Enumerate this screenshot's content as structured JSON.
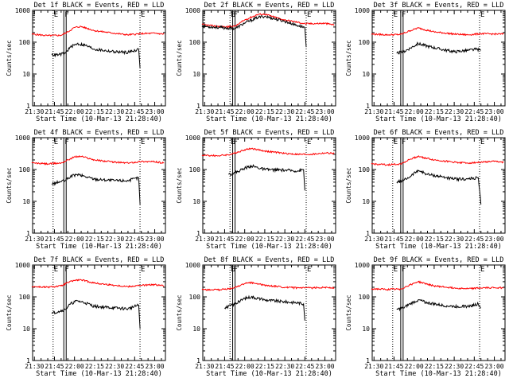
{
  "common": {
    "xlabel": "Start Time (10-Mar-13 21:28:40)",
    "ylabel": "Counts/sec",
    "x_tick_labels": [
      "21:30",
      "21:45",
      "22:00",
      "22:15",
      "22:30",
      "22:45",
      "23:00"
    ],
    "y_tick_labels": [
      "1",
      "10",
      "100",
      "1000"
    ],
    "marker_labels": [
      "E",
      "F",
      "E"
    ],
    "colors": {
      "events": "#000000",
      "lld": "#ff0000",
      "axes": "#000000",
      "background": "#ffffff"
    }
  },
  "chart_data": [
    {
      "type": "line",
      "title": "Det 1f BLACK = Events, RED = LLD",
      "x_tick_labels": [
        "21:30",
        "21:45",
        "22:00",
        "22:15",
        "22:30",
        "22:45",
        "23:00"
      ],
      "y_tick_labels": [
        "1",
        "10",
        "100",
        "1000"
      ],
      "ylim": [
        1,
        1000
      ],
      "yscale": "log",
      "xlim": [
        "21:28:40",
        "23:08:00"
      ],
      "xlabel": "Start Time (10-Mar-13 21:28:40)",
      "ylabel": "Counts/sec",
      "markers": [
        {
          "label": "E",
          "time": "21:44"
        },
        {
          "label": "F",
          "time": "21:52"
        },
        {
          "label": "E",
          "time": "22:49"
        }
      ],
      "series": [
        {
          "key": "lld",
          "color": "#ff0000",
          "x": [
            "21:28",
            "21:40",
            "21:50",
            "21:55",
            "22:00",
            "22:05",
            "22:15",
            "22:30",
            "22:40",
            "22:50",
            "23:00",
            "23:07"
          ],
          "values": [
            180,
            160,
            165,
            210,
            290,
            310,
            230,
            190,
            170,
            185,
            190,
            180
          ]
        },
        {
          "key": "events",
          "color": "#000000",
          "x": [
            "21:43",
            "21:48",
            "21:53",
            "21:57",
            "22:02",
            "22:08",
            "22:15",
            "22:30",
            "22:40",
            "22:48",
            "22:49"
          ],
          "values": [
            40,
            40,
            45,
            70,
            90,
            80,
            60,
            50,
            48,
            60,
            15
          ]
        }
      ]
    },
    {
      "type": "line",
      "title": "Det 2f BLACK = Events, RED = LLD",
      "x_tick_labels": [
        "21:30",
        "21:45",
        "22:00",
        "22:15",
        "22:30",
        "22:45",
        "23:00"
      ],
      "y_tick_labels": [
        "1",
        "10",
        "100",
        "1000"
      ],
      "ylim": [
        1,
        1000
      ],
      "yscale": "log",
      "xlim": [
        "21:28:40",
        "23:08:00"
      ],
      "xlabel": "Start Time (10-Mar-13 21:28:40)",
      "ylabel": "Counts/sec",
      "markers": [
        {
          "label": "E",
          "time": "21:49"
        },
        {
          "label": "F",
          "time": "21:51"
        },
        {
          "label": "E",
          "time": "22:46"
        }
      ],
      "series": [
        {
          "key": "lld",
          "color": "#ff0000",
          "x": [
            "21:28",
            "21:35",
            "21:45",
            "21:53",
            "22:00",
            "22:10",
            "22:15",
            "22:28",
            "22:40",
            "22:45",
            "23:00",
            "23:07"
          ],
          "values": [
            360,
            330,
            300,
            320,
            500,
            750,
            760,
            520,
            420,
            380,
            390,
            350
          ]
        },
        {
          "key": "events",
          "color": "#000000",
          "x": [
            "21:28",
            "21:45",
            "21:53",
            "22:00",
            "22:10",
            "22:15",
            "22:30",
            "22:40",
            "22:45",
            "22:46"
          ],
          "values": [
            320,
            280,
            270,
            400,
            600,
            650,
            450,
            330,
            290,
            70
          ]
        }
      ]
    },
    {
      "type": "line",
      "title": "Det 3f BLACK = Events, RED = LLD",
      "x_tick_labels": [
        "21:30",
        "21:45",
        "22:00",
        "22:15",
        "22:30",
        "22:45",
        "23:00"
      ],
      "y_tick_labels": [
        "1",
        "10",
        "100",
        "1000"
      ],
      "ylim": [
        1,
        1000
      ],
      "yscale": "log",
      "xlim": [
        "21:28:40",
        "23:08:00"
      ],
      "xlabel": "Start Time (10-Mar-13 21:28:40)",
      "ylabel": "Counts/sec",
      "markers": [
        {
          "label": "E",
          "time": "21:44"
        },
        {
          "label": "F",
          "time": "21:50"
        },
        {
          "label": "E",
          "time": "22:49"
        }
      ],
      "series": [
        {
          "key": "lld",
          "color": "#ff0000",
          "x": [
            "21:28",
            "21:40",
            "21:50",
            "21:57",
            "22:03",
            "22:15",
            "22:30",
            "22:40",
            "22:50",
            "23:00",
            "23:07"
          ],
          "values": [
            180,
            170,
            175,
            230,
            280,
            210,
            180,
            170,
            185,
            180,
            180
          ]
        },
        {
          "key": "events",
          "color": "#000000",
          "x": [
            "21:47",
            "21:52",
            "21:57",
            "22:03",
            "22:10",
            "22:20",
            "22:30",
            "22:40",
            "22:47",
            "22:50"
          ],
          "values": [
            45,
            50,
            65,
            90,
            75,
            60,
            50,
            55,
            60,
            55
          ]
        }
      ]
    },
    {
      "type": "line",
      "title": "Det 4f BLACK = Events, RED = LLD",
      "x_tick_labels": [
        "21:30",
        "21:45",
        "22:00",
        "22:15",
        "22:30",
        "22:45",
        "23:00"
      ],
      "y_tick_labels": [
        "1",
        "10",
        "100",
        "1000"
      ],
      "ylim": [
        1,
        1000
      ],
      "yscale": "log",
      "xlim": [
        "21:28:40",
        "23:08:00"
      ],
      "xlabel": "Start Time (10-Mar-13 21:28:40)",
      "ylabel": "Counts/sec",
      "markers": [
        {
          "label": "E",
          "time": "21:44"
        },
        {
          "label": "F",
          "time": "21:52"
        },
        {
          "label": "E",
          "time": "22:49"
        }
      ],
      "series": [
        {
          "key": "lld",
          "color": "#ff0000",
          "x": [
            "21:28",
            "21:40",
            "21:50",
            "21:55",
            "22:00",
            "22:05",
            "22:15",
            "22:30",
            "22:40",
            "22:50",
            "23:00",
            "23:07"
          ],
          "values": [
            160,
            150,
            160,
            200,
            250,
            260,
            200,
            170,
            160,
            180,
            175,
            160
          ]
        },
        {
          "key": "events",
          "color": "#000000",
          "x": [
            "21:43",
            "21:48",
            "21:53",
            "21:57",
            "22:02",
            "22:08",
            "22:15",
            "22:30",
            "22:40",
            "22:48",
            "22:49"
          ],
          "values": [
            35,
            40,
            45,
            60,
            70,
            60,
            50,
            45,
            45,
            55,
            8
          ]
        }
      ]
    },
    {
      "type": "line",
      "title": "Det 5f BLACK = Events, RED = LLD",
      "x_tick_labels": [
        "21:30",
        "21:45",
        "22:00",
        "22:15",
        "22:30",
        "22:45",
        "23:00"
      ],
      "y_tick_labels": [
        "1",
        "10",
        "100",
        "1000"
      ],
      "ylim": [
        1,
        1000
      ],
      "yscale": "log",
      "xlim": [
        "21:28:40",
        "23:08:00"
      ],
      "xlabel": "Start Time (10-Mar-13 21:28:40)",
      "ylabel": "Counts/sec",
      "markers": [
        {
          "label": "E",
          "time": "21:49"
        },
        {
          "label": "F",
          "time": "21:51"
        },
        {
          "label": "E",
          "time": "22:46"
        }
      ],
      "series": [
        {
          "key": "lld",
          "color": "#ff0000",
          "x": [
            "21:28",
            "21:40",
            "21:50",
            "22:00",
            "22:05",
            "22:15",
            "22:30",
            "22:40",
            "22:50",
            "23:00",
            "23:07"
          ],
          "values": [
            280,
            270,
            300,
            420,
            460,
            380,
            320,
            300,
            300,
            330,
            320
          ]
        },
        {
          "key": "events",
          "color": "#000000",
          "x": [
            "21:48",
            "21:53",
            "22:00",
            "22:05",
            "22:15",
            "22:30",
            "22:40",
            "22:44",
            "22:45"
          ],
          "values": [
            70,
            80,
            110,
            130,
            100,
            95,
            90,
            100,
            22
          ]
        }
      ]
    },
    {
      "type": "line",
      "title": "Det 6f BLACK = Events, RED = LLD",
      "x_tick_labels": [
        "21:30",
        "21:45",
        "22:00",
        "22:15",
        "22:30",
        "22:45",
        "23:00"
      ],
      "y_tick_labels": [
        "1",
        "10",
        "100",
        "1000"
      ],
      "ylim": [
        1,
        1000
      ],
      "yscale": "log",
      "xlim": [
        "21:28:40",
        "23:08:00"
      ],
      "xlabel": "Start Time (10-Mar-13 21:28:40)",
      "ylabel": "Counts/sec",
      "markers": [
        {
          "label": "E",
          "time": "21:44"
        },
        {
          "label": "F",
          "time": "21:50"
        },
        {
          "label": "E",
          "time": "22:49"
        }
      ],
      "series": [
        {
          "key": "lld",
          "color": "#ff0000",
          "x": [
            "21:28",
            "21:40",
            "21:50",
            "21:57",
            "22:03",
            "22:15",
            "22:30",
            "22:40",
            "22:50",
            "23:00",
            "23:07"
          ],
          "values": [
            150,
            140,
            150,
            210,
            260,
            200,
            170,
            160,
            170,
            180,
            170
          ]
        },
        {
          "key": "events",
          "color": "#000000",
          "x": [
            "21:47",
            "21:52",
            "21:57",
            "22:03",
            "22:10",
            "22:20",
            "22:30",
            "22:40",
            "22:48",
            "22:50"
          ],
          "values": [
            40,
            45,
            60,
            95,
            70,
            60,
            50,
            50,
            55,
            8
          ]
        }
      ]
    },
    {
      "type": "line",
      "title": "Det 7f BLACK = Events, RED = LLD",
      "x_tick_labels": [
        "21:30",
        "21:45",
        "22:00",
        "22:15",
        "22:30",
        "22:45",
        "23:00"
      ],
      "y_tick_labels": [
        "1",
        "10",
        "100",
        "1000"
      ],
      "ylim": [
        1,
        1000
      ],
      "yscale": "log",
      "xlim": [
        "21:28:40",
        "23:08:00"
      ],
      "xlabel": "Start Time (10-Mar-13 21:28:40)",
      "ylabel": "Counts/sec",
      "markers": [
        {
          "label": "E",
          "time": "21:44"
        },
        {
          "label": "F",
          "time": "21:52"
        },
        {
          "label": "E",
          "time": "22:49"
        }
      ],
      "series": [
        {
          "key": "lld",
          "color": "#ff0000",
          "x": [
            "21:28",
            "21:40",
            "21:50",
            "21:55",
            "22:00",
            "22:05",
            "22:15",
            "22:30",
            "22:40",
            "22:50",
            "23:00",
            "23:07"
          ],
          "values": [
            210,
            200,
            220,
            280,
            330,
            340,
            270,
            230,
            210,
            230,
            240,
            220
          ]
        },
        {
          "key": "events",
          "color": "#000000",
          "x": [
            "21:43",
            "21:48",
            "21:53",
            "21:57",
            "22:02",
            "22:08",
            "22:15",
            "22:30",
            "22:40",
            "22:48",
            "22:49"
          ],
          "values": [
            30,
            35,
            40,
            60,
            75,
            65,
            50,
            45,
            42,
            55,
            10
          ]
        }
      ]
    },
    {
      "type": "line",
      "title": "Det 8f BLACK = Events, RED = LLD",
      "x_tick_labels": [
        "21:30",
        "21:45",
        "22:00",
        "22:15",
        "22:30",
        "22:45",
        "23:00"
      ],
      "y_tick_labels": [
        "1",
        "10",
        "100",
        "1000"
      ],
      "ylim": [
        1,
        1000
      ],
      "yscale": "log",
      "xlim": [
        "21:28:40",
        "23:08:00"
      ],
      "xlabel": "Start Time (10-Mar-13 21:28:40)",
      "ylabel": "Counts/sec",
      "markers": [
        {
          "label": "E",
          "time": "21:49"
        },
        {
          "label": "F",
          "time": "21:51"
        },
        {
          "label": "E",
          "time": "22:46"
        }
      ],
      "series": [
        {
          "key": "lld",
          "color": "#ff0000",
          "x": [
            "21:28",
            "21:40",
            "21:50",
            "22:00",
            "22:05",
            "22:15",
            "22:30",
            "22:40",
            "22:50",
            "23:00",
            "23:07"
          ],
          "values": [
            170,
            165,
            180,
            260,
            280,
            230,
            200,
            190,
            190,
            200,
            190
          ]
        },
        {
          "key": "events",
          "color": "#000000",
          "x": [
            "21:45",
            "21:53",
            "22:00",
            "22:05",
            "22:15",
            "22:30",
            "22:40",
            "22:44",
            "22:45"
          ],
          "values": [
            45,
            60,
            90,
            100,
            80,
            70,
            65,
            60,
            18
          ]
        }
      ]
    },
    {
      "type": "line",
      "title": "Det 9f BLACK = Events, RED = LLD",
      "x_tick_labels": [
        "21:30",
        "21:45",
        "22:00",
        "22:15",
        "22:30",
        "22:45",
        "23:00"
      ],
      "y_tick_labels": [
        "1",
        "10",
        "100",
        "1000"
      ],
      "ylim": [
        1,
        1000
      ],
      "yscale": "log",
      "xlim": [
        "21:28:40",
        "23:08:00"
      ],
      "xlabel": "Start Time (10-Mar-13 21:28:40)",
      "ylabel": "Counts/sec",
      "markers": [
        {
          "label": "E",
          "time": "21:44"
        },
        {
          "label": "F",
          "time": "21:50"
        },
        {
          "label": "E",
          "time": "22:49"
        }
      ],
      "series": [
        {
          "key": "lld",
          "color": "#ff0000",
          "x": [
            "21:28",
            "21:40",
            "21:50",
            "21:57",
            "22:03",
            "22:15",
            "22:30",
            "22:40",
            "22:50",
            "23:00",
            "23:07"
          ],
          "values": [
            180,
            170,
            175,
            240,
            300,
            220,
            190,
            180,
            190,
            195,
            190
          ]
        },
        {
          "key": "events",
          "color": "#000000",
          "x": [
            "21:47",
            "21:52",
            "21:57",
            "22:03",
            "22:10",
            "22:20",
            "22:30",
            "22:40",
            "22:48",
            "22:50"
          ],
          "values": [
            40,
            45,
            60,
            80,
            65,
            55,
            50,
            50,
            60,
            45
          ]
        }
      ]
    }
  ]
}
